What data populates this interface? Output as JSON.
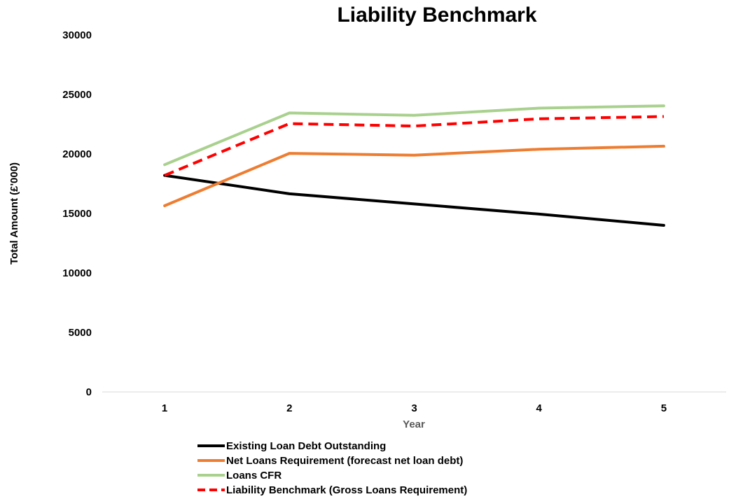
{
  "chart_data": {
    "type": "line",
    "title": "Liability Benchmark",
    "xlabel": "Year",
    "ylabel": "Total Amount (£'000)",
    "x": [
      "1",
      "2",
      "3",
      "4",
      "5"
    ],
    "ylim": [
      0,
      30000
    ],
    "yticks": [
      "0",
      "5000",
      "10000",
      "15000",
      "20000",
      "25000",
      "30000"
    ],
    "grid": false,
    "legend_position": "bottom",
    "series": [
      {
        "name": "Existing Loan Debt Outstanding",
        "values": [
          18200,
          16650,
          15800,
          14950,
          14000
        ],
        "color": "#000000",
        "dash": false
      },
      {
        "name": "Net Loans Requirement (forecast net loan debt)",
        "values": [
          15650,
          20050,
          19900,
          20400,
          20650
        ],
        "color": "#ED7D31",
        "dash": false
      },
      {
        "name": "Loans CFR",
        "values": [
          19100,
          23450,
          23250,
          23850,
          24050
        ],
        "color": "#A9D18E",
        "dash": false
      },
      {
        "name": "Liability Benchmark (Gross Loans Requirement)",
        "values": [
          18200,
          22550,
          22350,
          22950,
          23150
        ],
        "color": "#FF0000",
        "dash": true
      }
    ]
  }
}
